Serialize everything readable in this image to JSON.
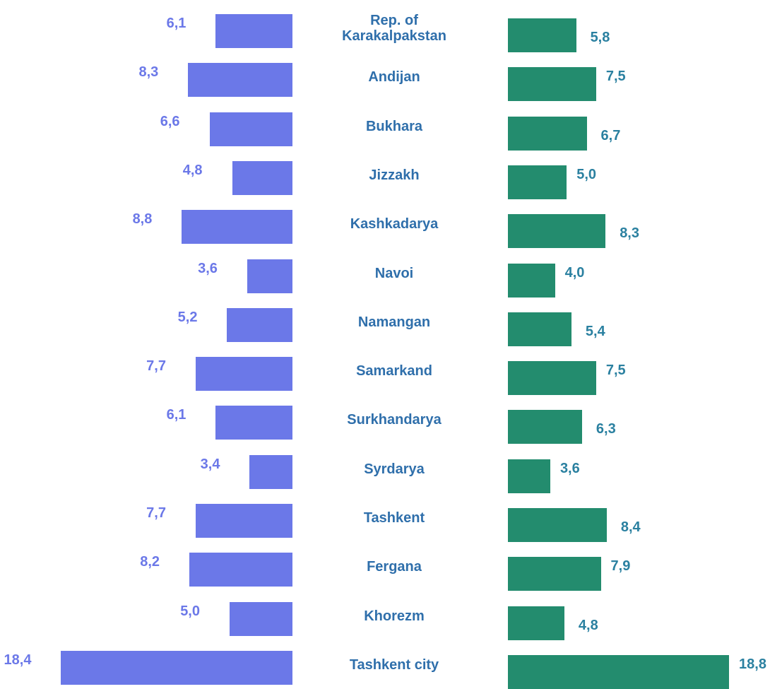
{
  "chart_data": {
    "type": "butterfly-bar",
    "categories": [
      "Rep. of Karakalpakstan",
      "Andijan",
      "Bukhara",
      "Jizzakh",
      "Kashkadarya",
      "Navoi",
      "Namangan",
      "Samarkand",
      "Surkhandarya",
      "Syrdarya",
      "Tashkent",
      "Fergana",
      "Khorezm",
      "Tashkent city"
    ],
    "series": [
      {
        "color": "#6b78e8",
        "label_color": "#6b78e8",
        "values": [
          6.1,
          8.3,
          6.6,
          4.8,
          8.8,
          3.6,
          5.2,
          7.7,
          6.1,
          3.4,
          7.7,
          8.2,
          5.0,
          18.4
        ],
        "value_labels": [
          "6,1",
          "8,3",
          "6,6",
          "4,8",
          "8,8",
          "3,6",
          "5,2",
          "7,7",
          "6,1",
          "3,4",
          "7,7",
          "8,2",
          "5,0",
          "18,4"
        ]
      },
      {
        "color": "#238c6e",
        "label_color": "#2a80a0",
        "values": [
          5.8,
          7.5,
          6.7,
          5.0,
          8.3,
          4.0,
          5.4,
          7.5,
          6.3,
          3.6,
          8.4,
          7.9,
          4.8,
          18.8
        ],
        "value_labels": [
          "5,8",
          "7,5",
          "6,7",
          "5,0",
          "8,3",
          "4,0",
          "5,4",
          "7,5",
          "6,3",
          "3,6",
          "8,4",
          "7,9",
          "4,8",
          "18,8"
        ]
      }
    ],
    "category_color": "#2f6fab"
  }
}
